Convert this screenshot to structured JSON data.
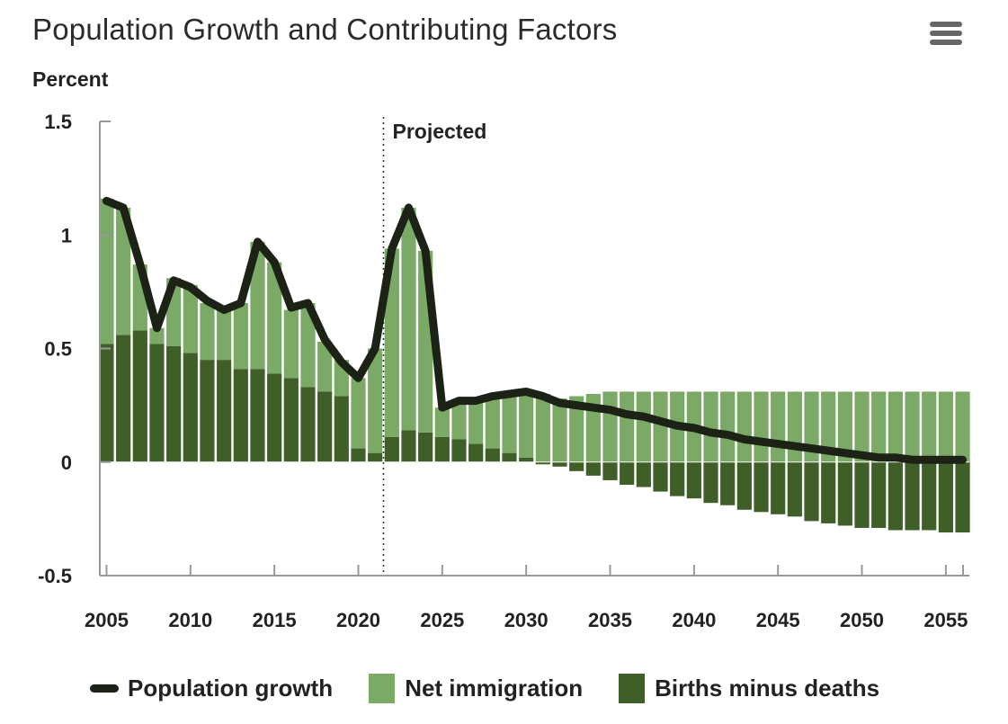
{
  "title": "Population Growth and Contributing Factors",
  "menu_icon": "hamburger-menu-icon",
  "colors": {
    "net_immigration": "#7aaa66",
    "births_minus_deaths": "#405e28",
    "population_growth": "#1c2216",
    "axis": "#999999",
    "background": "#ffffff"
  },
  "chart_data": {
    "type": "bar",
    "stacked": true,
    "ylabel": "Percent",
    "xlabel": "",
    "ylim": [
      -0.5,
      1.5
    ],
    "yticks": [
      -0.5,
      0,
      0.5,
      1,
      1.5
    ],
    "ytick_labels": [
      "-0.5",
      "0",
      "0.5",
      "1",
      "1.5"
    ],
    "xticks": [
      2005,
      2010,
      2015,
      2020,
      2025,
      2030,
      2035,
      2040,
      2045,
      2050,
      2055
    ],
    "xtick_labels": [
      "2005",
      "2010",
      "2015",
      "2020",
      "2025",
      "2030",
      "2035",
      "2040",
      "2045",
      "2050",
      "2055"
    ],
    "projected_label": "Projected",
    "projected_start": 2021.5,
    "years": [
      2005,
      2006,
      2007,
      2008,
      2009,
      2010,
      2011,
      2012,
      2013,
      2014,
      2015,
      2016,
      2017,
      2018,
      2019,
      2020,
      2021,
      2022,
      2023,
      2024,
      2025,
      2026,
      2027,
      2028,
      2029,
      2030,
      2031,
      2032,
      2033,
      2034,
      2035,
      2036,
      2037,
      2038,
      2039,
      2040,
      2041,
      2042,
      2043,
      2044,
      2045,
      2046,
      2047,
      2048,
      2049,
      2050,
      2051,
      2052,
      2053,
      2054,
      2055,
      2056
    ],
    "series": [
      {
        "name": "Births minus deaths",
        "values": [
          0.52,
          0.56,
          0.58,
          0.52,
          0.51,
          0.48,
          0.45,
          0.45,
          0.41,
          0.41,
          0.39,
          0.37,
          0.33,
          0.31,
          0.29,
          0.06,
          0.04,
          0.11,
          0.14,
          0.13,
          0.11,
          0.1,
          0.08,
          0.06,
          0.04,
          0.02,
          -0.01,
          -0.02,
          -0.04,
          -0.06,
          -0.08,
          -0.1,
          -0.11,
          -0.13,
          -0.15,
          -0.16,
          -0.18,
          -0.19,
          -0.21,
          -0.22,
          -0.23,
          -0.24,
          -0.26,
          -0.27,
          -0.28,
          -0.29,
          -0.29,
          -0.3,
          -0.3,
          -0.3,
          -0.31,
          -0.31
        ]
      },
      {
        "name": "Net immigration",
        "values": [
          0.64,
          0.56,
          0.29,
          0.07,
          0.3,
          0.3,
          0.25,
          0.22,
          0.29,
          0.56,
          0.49,
          0.3,
          0.37,
          0.22,
          0.16,
          0.31,
          0.46,
          0.83,
          0.98,
          0.8,
          0.13,
          0.17,
          0.19,
          0.23,
          0.26,
          0.29,
          0.3,
          0.28,
          0.29,
          0.3,
          0.31,
          0.31,
          0.31,
          0.31,
          0.31,
          0.31,
          0.31,
          0.31,
          0.31,
          0.31,
          0.31,
          0.31,
          0.31,
          0.31,
          0.31,
          0.31,
          0.31,
          0.31,
          0.31,
          0.31,
          0.31,
          0.31
        ]
      },
      {
        "name": "Population growth",
        "type": "line",
        "values": [
          1.15,
          1.12,
          0.87,
          0.59,
          0.8,
          0.77,
          0.71,
          0.67,
          0.7,
          0.97,
          0.88,
          0.68,
          0.7,
          0.54,
          0.44,
          0.37,
          0.5,
          0.94,
          1.12,
          0.93,
          0.24,
          0.27,
          0.27,
          0.29,
          0.3,
          0.31,
          0.29,
          0.26,
          0.25,
          0.24,
          0.23,
          0.21,
          0.2,
          0.18,
          0.16,
          0.15,
          0.13,
          0.12,
          0.1,
          0.09,
          0.08,
          0.07,
          0.06,
          0.05,
          0.04,
          0.03,
          0.02,
          0.02,
          0.01,
          0.01,
          0.01,
          0.01
        ]
      }
    ],
    "legend_position": "bottom",
    "grid": false
  },
  "legend": {
    "population_growth": "Population growth",
    "net_immigration": "Net immigration",
    "births_minus_deaths": "Births minus deaths"
  }
}
